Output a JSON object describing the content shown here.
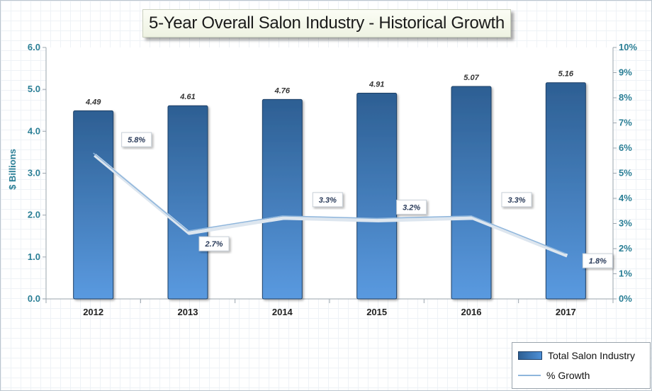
{
  "title": "5-Year Overall Salon Industry - Historical Growth",
  "chart_data": {
    "type": "bar",
    "title": "5-Year Overall Salon Industry - Historical Growth",
    "categories": [
      "2012",
      "2013",
      "2014",
      "2015",
      "2016",
      "2017"
    ],
    "ylabel": "$ Billions",
    "ylim": [
      0,
      6
    ],
    "y_ticks": [
      "0.0",
      "1.0",
      "2.0",
      "3.0",
      "4.0",
      "5.0",
      "6.0"
    ],
    "y2lim": [
      0,
      10
    ],
    "y2_ticks": [
      "0%",
      "1%",
      "2%",
      "3%",
      "4%",
      "5%",
      "6%",
      "7%",
      "8%",
      "9%",
      "10%"
    ],
    "series": [
      {
        "name": "Total Salon Industry",
        "type": "bar",
        "axis": "left",
        "values": [
          4.49,
          4.61,
          4.76,
          4.91,
          5.07,
          5.16
        ],
        "labels": [
          "4.49",
          "4.61",
          "4.76",
          "4.91",
          "5.07",
          "5.16"
        ]
      },
      {
        "name": "% Growth",
        "type": "line",
        "axis": "right",
        "values": [
          5.8,
          2.7,
          3.3,
          3.2,
          3.3,
          1.8
        ],
        "labels": [
          "5.8%",
          "2.7%",
          "3.3%",
          "3.2%",
          "3.3%",
          "1.8%"
        ]
      }
    ],
    "legend": "bottom-right",
    "grid": false
  },
  "colors": {
    "bar_dark": "#2d5f93",
    "bar_light": "#5a9ae0",
    "line": "#8fb6dc",
    "axis_text": "#2b7f96"
  }
}
